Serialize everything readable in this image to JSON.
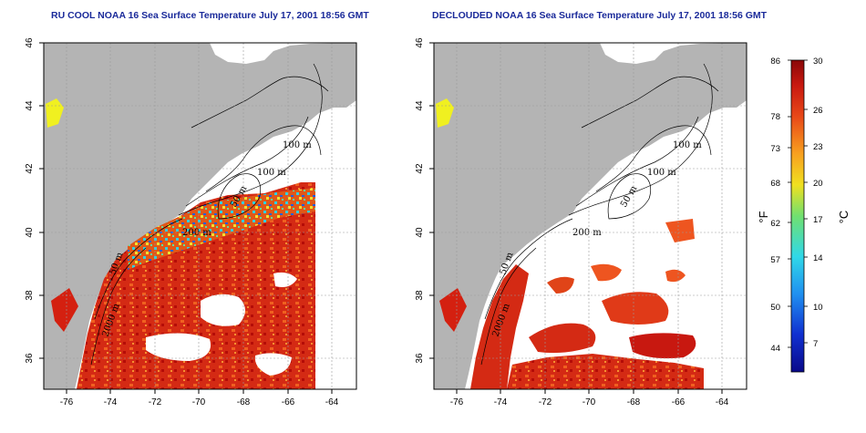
{
  "titles": {
    "left": "RU COOL NOAA 16 Sea Surface Temperature July 17, 2001 18:56 GMT",
    "right": "DECLOUDED NOAA 16 Sea Surface Temperature July 17, 2001 18:56 GMT"
  },
  "axes": {
    "x_ticks": [
      "-76",
      "-74",
      "-72",
      "-70",
      "-68",
      "-66",
      "-64"
    ],
    "y_ticks": [
      "46",
      "44",
      "42",
      "40",
      "38",
      "36"
    ],
    "lon_range": [
      -77,
      -63
    ],
    "lat_range": [
      35,
      46
    ]
  },
  "contours": {
    "labels": [
      "100 m",
      "100 m",
      "50 m",
      "200 m",
      "50 m",
      "2000 m"
    ]
  },
  "colorbar": {
    "fahrenheit_ticks": [
      "86",
      "78",
      "73",
      "68",
      "62",
      "57",
      "50",
      "44"
    ],
    "celsius_ticks": [
      "30",
      "26",
      "23",
      "20",
      "17",
      "14",
      "10",
      "7"
    ],
    "fahrenheit_unit": "°F",
    "celsius_unit": "°C",
    "range_celsius": [
      4,
      30
    ]
  },
  "colors": {
    "land": "#b4b4b4",
    "ocean_no_data": "#ffffff",
    "warm": "#d42010",
    "hot": "#b00000",
    "orange": "#ee5520",
    "cool_cyan": "#30d0e0",
    "cool_blue": "#2060e0",
    "lake": "#f0f020",
    "title": "#1a2a9a"
  }
}
